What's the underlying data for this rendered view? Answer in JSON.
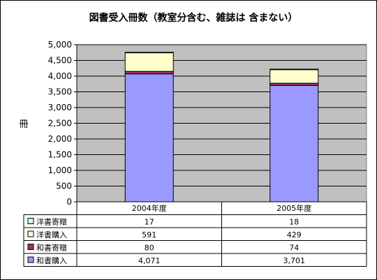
{
  "chart_data": {
    "type": "bar",
    "stacked": true,
    "title": "図書受入冊数（教室分含む、雑誌は 含まない）",
    "ylabel": "冊",
    "xlabel": "",
    "ylim": [
      0,
      5000
    ],
    "yticks": [
      "0",
      "500",
      "1,000",
      "1,500",
      "2,000",
      "2,500",
      "3,000",
      "3,500",
      "4,000",
      "4,500",
      "5,000"
    ],
    "grid": true,
    "legend": "data-table",
    "categories": [
      "2004年度",
      "2005年度"
    ],
    "series": [
      {
        "name": "和書購入",
        "values": [
          4071,
          3701
        ],
        "labels": [
          "4,071",
          "3,701"
        ],
        "color": "#9999ff"
      },
      {
        "name": "和書寄贈",
        "values": [
          80,
          74
        ],
        "labels": [
          "80",
          "74"
        ],
        "color": "#993366"
      },
      {
        "name": "洋書購入",
        "values": [
          591,
          429
        ],
        "labels": [
          "591",
          "429"
        ],
        "color": "#ffffcc"
      },
      {
        "name": "洋書寄贈",
        "values": [
          17,
          18
        ],
        "labels": [
          "17",
          "18"
        ],
        "color": "#ccffff"
      }
    ],
    "plot_background": "#c0c0c0"
  }
}
